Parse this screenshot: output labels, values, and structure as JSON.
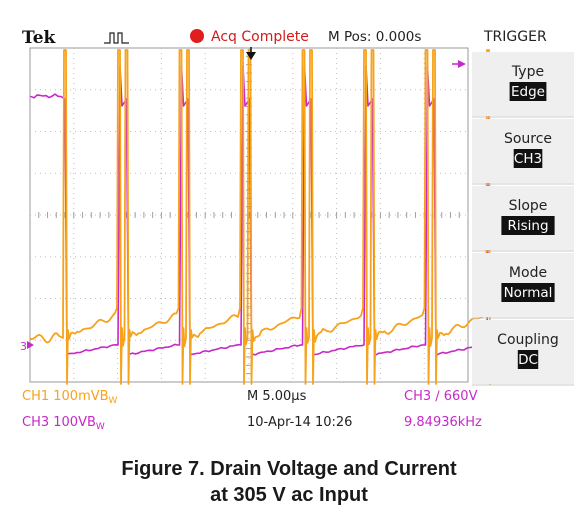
{
  "header": {
    "brand": "Tek",
    "status": "Acq Complete",
    "mpos": "M Pos: 0.000s",
    "panel_title": "TRIGGER"
  },
  "trigger_menu": [
    {
      "label": "Type",
      "value": "Edge"
    },
    {
      "label": "Source",
      "value": "CH3"
    },
    {
      "label": "Slope",
      "value": "Rising"
    },
    {
      "label": "Mode",
      "value": "Normal"
    },
    {
      "label": "Coupling",
      "value": "DC"
    }
  ],
  "readouts": {
    "ch1": "CH1  100mVB",
    "ch1_sub": "W",
    "ch3": "CH3  100VB",
    "ch3_sub": "W",
    "timebase": "M 5.00µs",
    "date": "10-Apr-14 10:26",
    "trigger_level": "CH3  ∕  660V",
    "frequency": "9.84936kHz"
  },
  "markers": {
    "ch3_ground": "3"
  },
  "caption": {
    "line1": "Figure 7. Drain Voltage and Current",
    "line2": "at 305 V ac Input"
  },
  "colors": {
    "ch1": "#f7a21b",
    "ch3": "#c729c8",
    "status_dot": "#e01e1e",
    "grid": "#bfbfbf",
    "panel_bg": "#efefef"
  }
}
